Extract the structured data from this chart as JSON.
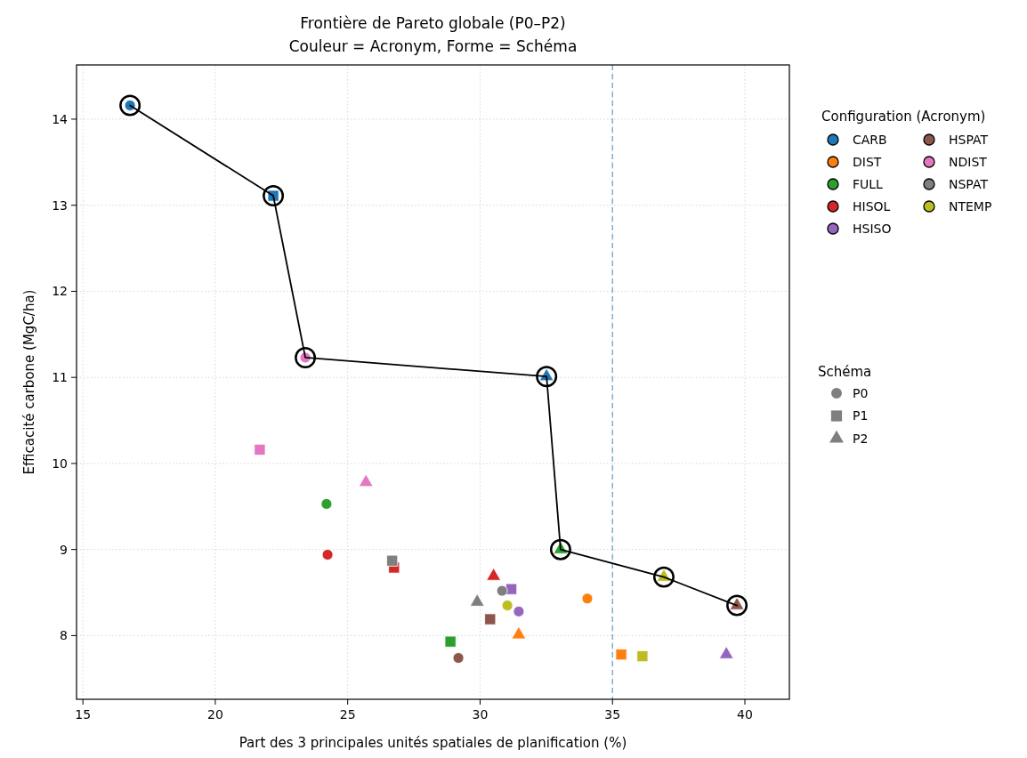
{
  "chart_data": {
    "type": "scatter",
    "title": "Frontière de Pareto globale (P0–P2)",
    "subtitle": "Couleur = Acronym, Forme = Schéma",
    "xlabel": "Part des 3 principales unités spatiales de planification (%)",
    "ylabel": "Efficacité carbone (MgC/ha)",
    "xlim": [
      14.76,
      41.68
    ],
    "ylim": [
      7.26,
      14.63
    ],
    "xticks": [
      15,
      20,
      25,
      30,
      35,
      40
    ],
    "yticks": [
      8,
      9,
      10,
      11,
      12,
      13,
      14
    ],
    "grid": true,
    "legend": "right",
    "legend_title": "Configuration (Acronym)",
    "annotations": [
      "Schéma",
      "P0",
      "P1",
      "P2"
    ],
    "ref_lines": [
      {
        "axis": "x",
        "value": 35,
        "color": "#1f77b4",
        "line_style": "dashed"
      }
    ],
    "series": [
      {
        "name": "CARB",
        "color": "#1f77b4",
        "marker": "circle",
        "x": [
          16.78
        ],
        "values": [
          14.16
        ]
      },
      {
        "color": "#1f77b4",
        "marker": "square",
        "x": [
          22.19
        ],
        "values": [
          13.11
        ]
      },
      {
        "color": "#1f77b4",
        "marker": "triangle",
        "x": [
          32.51
        ],
        "values": [
          11.01
        ]
      },
      {
        "name": "DIST",
        "color": "#ff7f0e",
        "marker": "circle",
        "x": [
          34.05
        ],
        "values": [
          8.43
        ]
      },
      {
        "color": "#ff7f0e",
        "marker": "square",
        "x": [
          35.33
        ],
        "values": [
          7.78
        ]
      },
      {
        "color": "#ff7f0e",
        "marker": "triangle",
        "x": [
          31.46
        ],
        "values": [
          8.01
        ]
      },
      {
        "name": "FULL",
        "color": "#2ca02c",
        "marker": "circle",
        "x": [
          24.2
        ],
        "values": [
          9.53
        ]
      },
      {
        "color": "#2ca02c",
        "marker": "square",
        "x": [
          28.88
        ],
        "values": [
          7.93
        ]
      },
      {
        "color": "#2ca02c",
        "marker": "triangle",
        "x": [
          33.04
        ],
        "values": [
          9.0
        ]
      },
      {
        "name": "HISOL",
        "color": "#d62728",
        "marker": "circle",
        "x": [
          24.24
        ],
        "values": [
          8.94
        ]
      },
      {
        "color": "#d62728",
        "marker": "square",
        "x": [
          26.75
        ],
        "values": [
          8.79
        ]
      },
      {
        "color": "#d62728",
        "marker": "triangle",
        "x": [
          30.51
        ],
        "values": [
          8.69
        ]
      },
      {
        "name": "HSISO",
        "color": "#9467bd",
        "marker": "circle",
        "x": [
          31.46
        ],
        "values": [
          8.28
        ]
      },
      {
        "color": "#9467bd",
        "marker": "square",
        "x": [
          31.18
        ],
        "values": [
          8.54
        ]
      },
      {
        "color": "#9467bd",
        "marker": "triangle",
        "x": [
          39.3
        ],
        "values": [
          7.78
        ]
      },
      {
        "name": "HSPAT",
        "color": "#8c564b",
        "marker": "circle",
        "x": [
          29.18
        ],
        "values": [
          7.74
        ]
      },
      {
        "color": "#8c564b",
        "marker": "square",
        "x": [
          30.38
        ],
        "values": [
          8.19
        ]
      },
      {
        "color": "#8c564b",
        "marker": "triangle",
        "x": [
          39.7
        ],
        "values": [
          8.35
        ]
      },
      {
        "name": "NDIST",
        "color": "#e377c2",
        "marker": "circle",
        "x": [
          23.4
        ],
        "values": [
          11.23
        ]
      },
      {
        "color": "#e377c2",
        "marker": "square",
        "x": [
          21.68
        ],
        "values": [
          10.16
        ]
      },
      {
        "color": "#e377c2",
        "marker": "triangle",
        "x": [
          25.69
        ],
        "values": [
          9.78
        ]
      },
      {
        "name": "NSPAT",
        "color": "#7f7f7f",
        "marker": "circle",
        "x": [
          30.83
        ],
        "values": [
          8.52
        ]
      },
      {
        "color": "#7f7f7f",
        "marker": "square",
        "x": [
          26.68
        ],
        "values": [
          8.87
        ]
      },
      {
        "color": "#7f7f7f",
        "marker": "triangle",
        "x": [
          29.89
        ],
        "values": [
          8.39
        ]
      },
      {
        "name": "NTEMP",
        "color": "#bcbd22",
        "marker": "circle",
        "x": [
          31.03
        ],
        "values": [
          8.35
        ]
      },
      {
        "color": "#bcbd22",
        "marker": "square",
        "x": [
          36.13
        ],
        "values": [
          7.76
        ]
      },
      {
        "color": "#bcbd22",
        "marker": "triangle",
        "x": [
          36.94
        ],
        "values": [
          8.68
        ]
      },
      {
        "type": "line",
        "color": "#000000",
        "marker": "circle",
        "line_style": "solid",
        "x": [
          16.78,
          22.19,
          23.4,
          32.51,
          33.04,
          36.94,
          39.7
        ],
        "values": [
          14.16,
          13.11,
          11.23,
          11.01,
          9.0,
          8.68,
          8.35
        ]
      }
    ]
  }
}
